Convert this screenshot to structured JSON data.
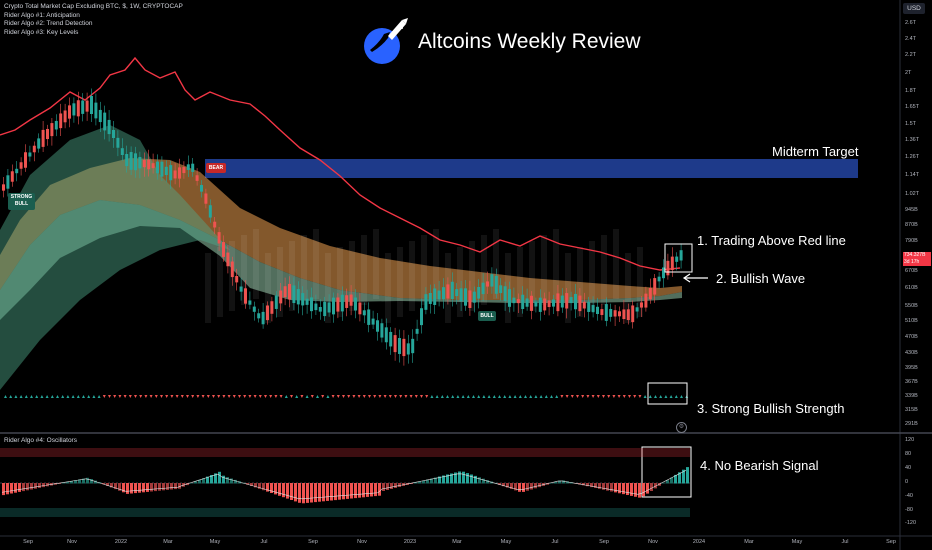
{
  "header": {
    "symbol_line": "Crypto Total Market Cap Excluding BTC, $, 1W, CRYPTOCAP",
    "indicators": [
      "Rider Algo #1: Anticipation",
      "Rider Algo #2: Trend Detection",
      "Rider Algo #3: Key Levels"
    ]
  },
  "currency_button": "USD",
  "title": "Altcoins Weekly Review",
  "logo_icon": "moon-rocket-icon",
  "annotations": {
    "midterm": "Midterm Target",
    "a1": "1. Trading Above Red line",
    "a2": "2. Bullish Wave",
    "a3": "3. Strong Bullish Strength",
    "a4": "4. No Bearish Signal"
  },
  "badges": {
    "strong_bull": [
      "STRONG",
      "BULL"
    ],
    "bear": "BEAR",
    "bull": "BULL"
  },
  "price_axis": [
    "2.6T",
    "2.4T",
    "2.2T",
    "2T",
    "1.8T",
    "1.65T",
    "1.5T",
    "1.36T",
    "1.26T",
    "1.14T",
    "1.02T",
    "945B",
    "870B",
    "790B",
    "670B",
    "610B",
    "550B",
    "510B",
    "470B",
    "430B",
    "395B",
    "367B",
    "339B",
    "315B",
    "291B"
  ],
  "price_tag": [
    "734.327B",
    "3d 17h"
  ],
  "oscillator": {
    "label": "Rider Algo #4: Oscillators",
    "axis": [
      "120",
      "80",
      "40",
      "0",
      "-40",
      "-80",
      "-120"
    ]
  },
  "time_axis": [
    "Sep",
    "Nov",
    "2022",
    "Mar",
    "May",
    "Jul",
    "Sep",
    "Nov",
    "2023",
    "Mar",
    "May",
    "Jul",
    "Sep",
    "Nov",
    "2024",
    "Mar",
    "May",
    "Jul",
    "Sep"
  ],
  "colors": {
    "background": "#000000",
    "red_line": "#f23645",
    "bull": "#26a69a",
    "bear": "#ef5350",
    "target_zone": "#1e3a8a",
    "accent_blue": "#2962ff"
  }
}
